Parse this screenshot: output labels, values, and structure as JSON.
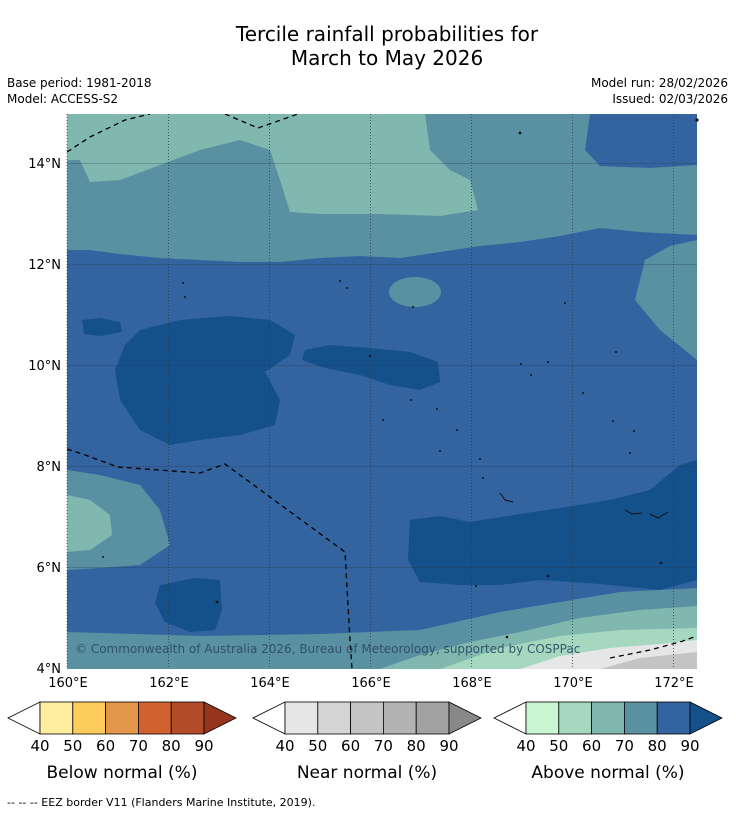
{
  "title_line1": "Tercile rainfall probabilities for",
  "title_line2": "March to May 2026",
  "meta": {
    "base_period": "Base period: 1981-2018",
    "model": "Model: ACCESS-S2",
    "model_run": "Model run: 28/02/2026",
    "issued": "Issued: 02/03/2026"
  },
  "map": {
    "lon_ticks": [
      "160°E",
      "162°E",
      "164°E",
      "166°E",
      "168°E",
      "170°E",
      "172°E"
    ],
    "lat_ticks": [
      "14°N",
      "12°N",
      "10°N",
      "8°N",
      "6°N",
      "4°N"
    ],
    "copyright": "© Commonwealth of Australia 2026, Bureau of Meteorology, supported by COSPPac"
  },
  "legends": [
    {
      "label": "Below normal (%)",
      "ticks": [
        "40",
        "50",
        "60",
        "70",
        "80",
        "90"
      ],
      "colors": [
        "#ffffff",
        "#ffeda0",
        "#fecc5c",
        "#e3974a",
        "#d1622f",
        "#b34b28",
        "#96351d"
      ]
    },
    {
      "label": "Near normal (%)",
      "ticks": [
        "40",
        "50",
        "60",
        "70",
        "80",
        "90"
      ],
      "colors": [
        "#ffffff",
        "#e6e6e6",
        "#d4d4d4",
        "#c4c4c4",
        "#b3b3b3",
        "#a2a2a2",
        "#888888"
      ]
    },
    {
      "label": "Above normal (%)",
      "ticks": [
        "40",
        "50",
        "60",
        "70",
        "80",
        "90"
      ],
      "colors": [
        "#ffffff",
        "#c9f6d0",
        "#a5d8bf",
        "#80b8b0",
        "#5a91a2",
        "#3464a0",
        "#14508a"
      ]
    }
  ],
  "footnote": "--  --  -- EEZ border V11 (Flanders Marine Institute, 2019)."
}
